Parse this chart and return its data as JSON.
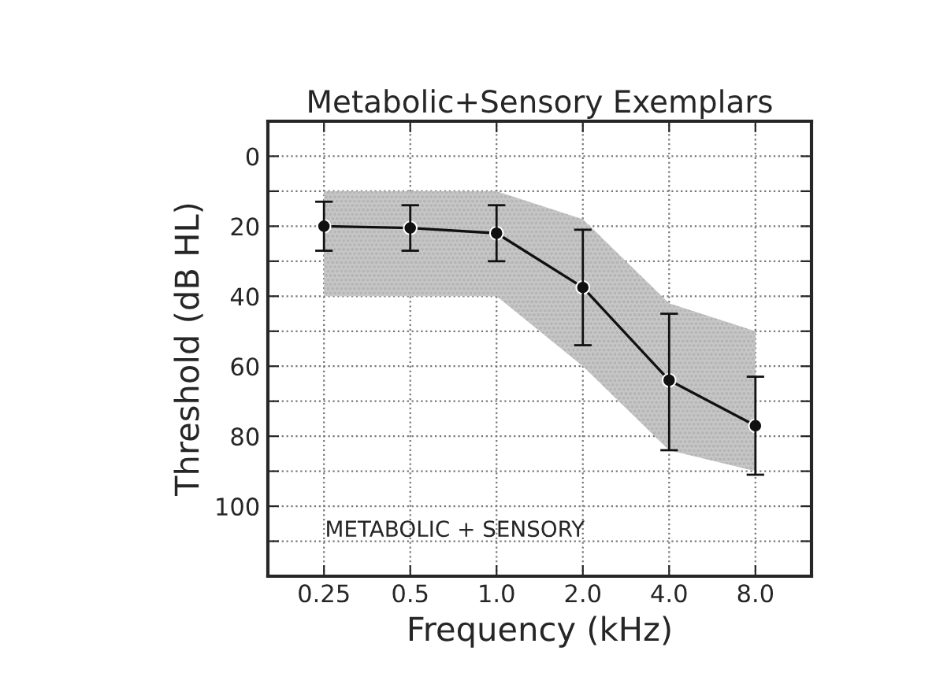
{
  "chart_data": {
    "type": "line",
    "title": "Metabolic+Sensory Exemplars",
    "xlabel": "Frequency (kHz)",
    "ylabel": "Threshold (dB HL)",
    "categories": [
      "0.25",
      "0.5",
      "1.0",
      "2.0",
      "4.0",
      "8.0"
    ],
    "series": [
      {
        "color": "#111111",
        "values": [
          20,
          20.5,
          22,
          37.5,
          64,
          77
        ],
        "errors": [
          [
            13,
            27
          ],
          [
            14,
            27
          ],
          [
            14,
            30
          ],
          [
            21,
            54
          ],
          [
            45,
            84
          ],
          [
            63,
            91
          ]
        ],
        "lower": [
          10,
          10,
          10,
          18,
          42,
          50
        ],
        "upper": [
          40,
          40,
          40,
          60,
          84,
          90
        ]
      }
    ],
    "ylim": [
      120,
      -10
    ],
    "yticks": [
      0,
      {
        "value": 10,
        "label": null
      },
      20,
      {
        "value": 30,
        "label": null
      },
      40,
      {
        "value": 50,
        "label": null
      },
      60,
      {
        "value": 70,
        "label": null
      },
      80,
      {
        "value": 90,
        "label": null
      },
      100,
      {
        "value": 110,
        "label": null
      }
    ],
    "annotations": [
      "METABOLIC + SENSORY"
    ],
    "grid": true,
    "marker": "circle",
    "line_style": "solid",
    "legend": false
  }
}
